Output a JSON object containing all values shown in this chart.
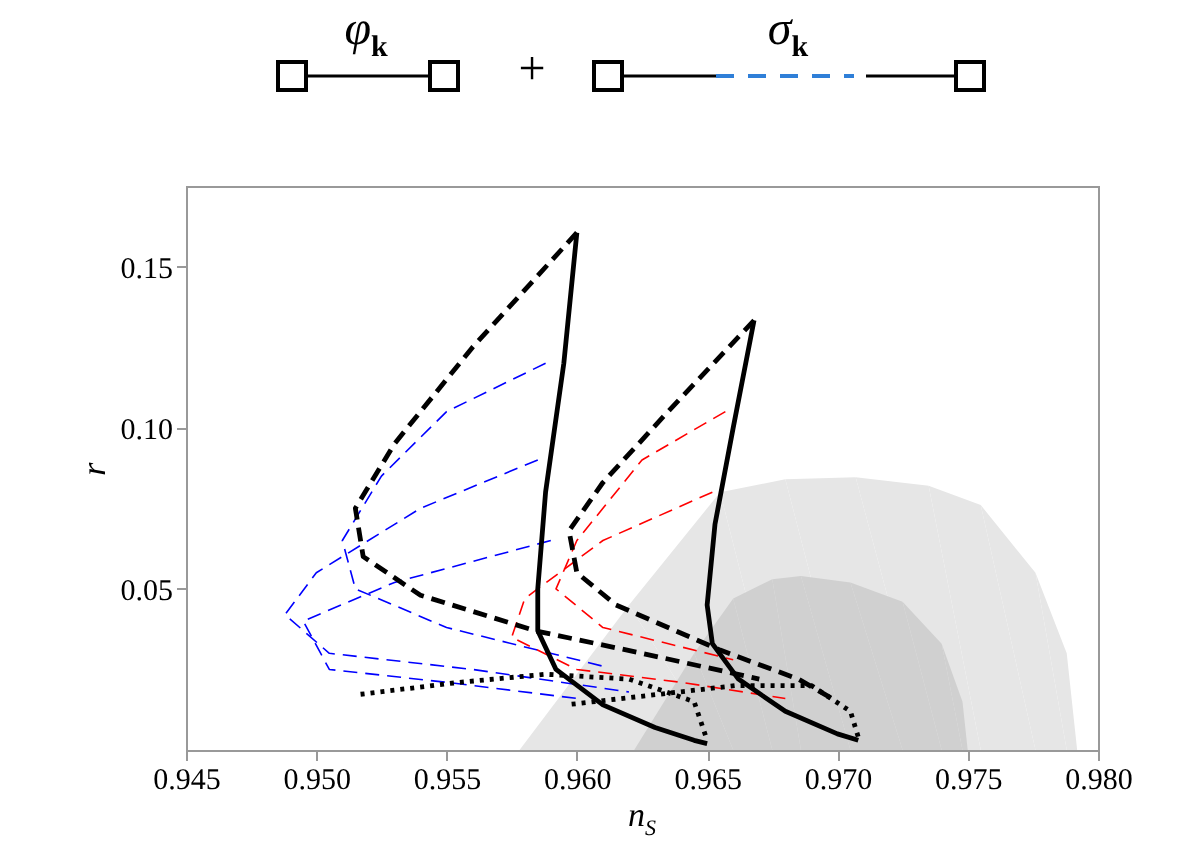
{
  "chart_data": {
    "type": "line",
    "xlabel": "n$_{S}$",
    "ylabel": "r",
    "annotations": [
      "φ$_{k}$",
      "+",
      "σ$_{k}$"
    ],
    "xlim": [
      0.945,
      0.98
    ],
    "ylim": [
      0,
      0.175
    ],
    "xticks": [
      0.945,
      {
        "value": 0.95,
        "label": "0.950"
      },
      0.955,
      {
        "value": 0.96,
        "label": "0.960"
      },
      0.965,
      {
        "value": 0.97,
        "label": "0.970"
      },
      0.975,
      {
        "value": 0.98,
        "label": "0.980"
      }
    ],
    "yticks": [
      0.05,
      {
        "value": 0.1,
        "label": "0.10"
      },
      0.15
    ],
    "grid": false,
    "series": [
      {
        "type": "area",
        "color": "#e6e6e6",
        "x": [
          0.9578,
          0.962,
          0.9655,
          0.968,
          0.9707,
          0.9735,
          0.9755,
          0.9776,
          0.9788,
          0.9792
        ],
        "values": [
          0,
          0.045,
          0.08,
          0.084,
          0.0846,
          0.082,
          0.076,
          0.055,
          0.03,
          0
        ]
      },
      {
        "type": "area",
        "color": "#d0d0d0",
        "x": [
          0.9622,
          0.9645,
          0.966,
          0.9675,
          0.9686,
          0.9705,
          0.9725,
          0.974,
          0.9748,
          0.975
        ],
        "values": [
          0,
          0.03,
          0.047,
          0.053,
          0.054,
          0.052,
          0.046,
          0.033,
          0.015,
          0
        ]
      },
      {
        "color": "#0000ff",
        "line_style": "dashed",
        "x": [
          0.9585,
          0.954,
          0.95,
          0.9488,
          0.9505,
          0.956,
          0.962
        ],
        "values": [
          0.09,
          0.075,
          0.055,
          0.042,
          0.03,
          0.025,
          0.018
        ]
      },
      {
        "color": "#0000ff",
        "line_style": "dashed",
        "x": [
          0.9588,
          0.955,
          0.9525,
          0.951,
          0.9515,
          0.955,
          0.961
        ],
        "values": [
          0.12,
          0.105,
          0.085,
          0.065,
          0.05,
          0.038,
          0.026
        ]
      },
      {
        "color": "#0000ff",
        "line_style": "dashed",
        "x": [
          0.959,
          0.953,
          0.9495,
          0.9505,
          0.955,
          0.96
        ],
        "values": [
          0.065,
          0.052,
          0.04,
          0.025,
          0.021,
          0.016
        ]
      },
      {
        "color": "#ff0000",
        "line_style": "dashed",
        "x": [
          0.9652,
          0.961,
          0.958,
          0.9575,
          0.96,
          0.964,
          0.968
        ],
        "values": [
          0.08,
          0.065,
          0.047,
          0.035,
          0.025,
          0.021,
          0.016
        ]
      },
      {
        "color": "#ff0000",
        "line_style": "dashed",
        "x": [
          0.9657,
          0.9625,
          0.96,
          0.9592,
          0.961,
          0.966
        ],
        "values": [
          0.105,
          0.09,
          0.065,
          0.05,
          0.038,
          0.028
        ]
      },
      {
        "color": "#000000",
        "line_style": "dashed",
        "x": [
          0.96,
          0.956,
          0.953,
          0.9515,
          0.9518,
          0.954,
          0.9584,
          0.9625,
          0.967
        ],
        "values": [
          0.1605,
          0.125,
          0.095,
          0.075,
          0.06,
          0.048,
          0.037,
          0.03,
          0.022
        ]
      },
      {
        "color": "#000000",
        "line_style": "solid",
        "x": [
          0.96,
          0.9595,
          0.9588,
          0.9585,
          0.9585,
          0.9592,
          0.961,
          0.963,
          0.9645,
          0.965
        ],
        "values": [
          0.1605,
          0.12,
          0.08,
          0.05,
          0.037,
          0.025,
          0.014,
          0.007,
          0.003,
          0.002
        ]
      },
      {
        "color": "#000000",
        "line_style": "dotted",
        "x": [
          0.9517,
          0.9555,
          0.9588,
          0.962,
          0.9645,
          0.965
        ],
        "values": [
          0.0173,
          0.021,
          0.0235,
          0.022,
          0.015,
          0.003
        ]
      },
      {
        "color": "#000000",
        "line_style": "dashed",
        "x": [
          0.9668,
          0.9635,
          0.961,
          0.9597,
          0.96,
          0.9615,
          0.9655,
          0.9685,
          0.97
        ],
        "values": [
          0.1333,
          0.105,
          0.083,
          0.068,
          0.055,
          0.045,
          0.031,
          0.022,
          0.015
        ]
      },
      {
        "color": "#000000",
        "line_style": "solid",
        "x": [
          0.9668,
          0.966,
          0.9653,
          0.965,
          0.9652,
          0.9662,
          0.968,
          0.97,
          0.9708
        ],
        "values": [
          0.1333,
          0.1,
          0.07,
          0.045,
          0.033,
          0.022,
          0.012,
          0.005,
          0.003
        ]
      },
      {
        "color": "#000000",
        "line_style": "dotted",
        "x": [
          0.9598,
          0.9661,
          0.969,
          0.9705,
          0.9708
        ],
        "values": [
          0.0142,
          0.02,
          0.02,
          0.012,
          0.004
        ]
      }
    ]
  }
}
